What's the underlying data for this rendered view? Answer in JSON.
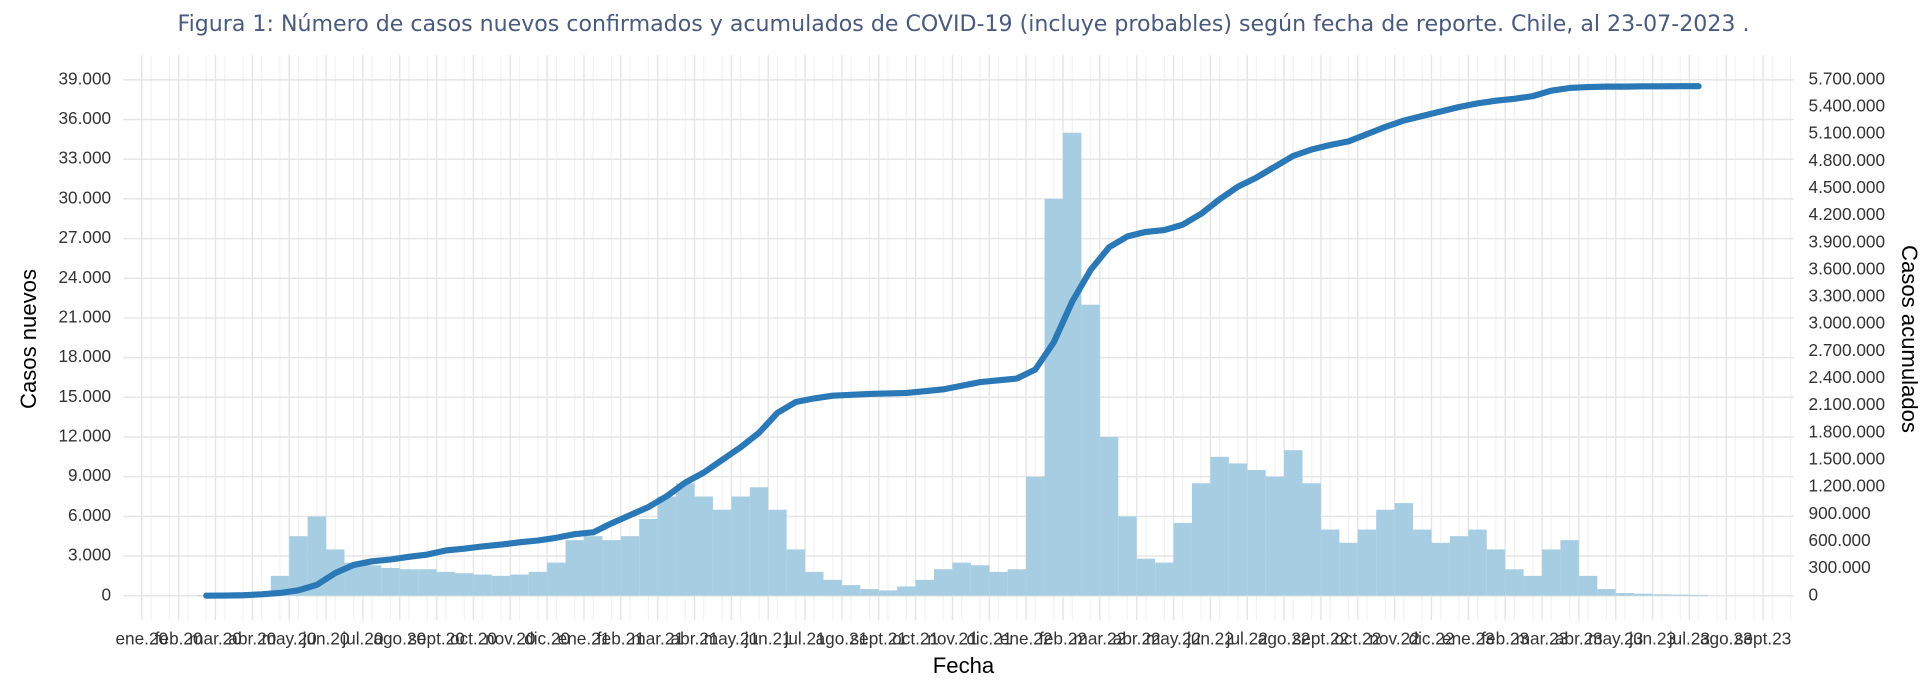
{
  "chart_data": {
    "type": "bar",
    "title": "Figura 1: Número de casos nuevos confirmados y acumulados de COVID-19 (incluye probables) según fecha de reporte. Chile, al 23-07-2023 .",
    "xlabel": "Fecha",
    "ylabel": "Casos nuevos",
    "y2label": "Casos acumulados",
    "categories": [
      "ene.20",
      null,
      "feb.20",
      null,
      "mar.20",
      null,
      "abr.20",
      null,
      "may.20",
      null,
      "jun.20",
      null,
      "jul.20",
      null,
      "ago.20",
      null,
      "sept.20",
      null,
      "oct.20",
      null,
      "nov.20",
      null,
      "dic.20",
      null,
      "ene.21",
      null,
      "feb.21",
      null,
      "mar.21",
      null,
      "abr.21",
      null,
      "may.21",
      null,
      "jun.21",
      null,
      "jul.21",
      null,
      "ago.21",
      null,
      "sept.21",
      null,
      "oct.21",
      null,
      "nov.21",
      null,
      "dic.21",
      null,
      "ene.22",
      null,
      "feb.22",
      null,
      "mar.22",
      null,
      "abr.22",
      null,
      "may.22",
      null,
      "jun.22",
      null,
      "jul.22",
      null,
      "ago.22",
      null,
      "sept.22",
      null,
      "oct.22",
      null,
      "nov.22",
      null,
      "dic.22",
      null,
      "ene.23",
      null,
      "feb.23",
      null,
      "mar.23",
      null,
      "abr.23",
      null,
      "may.23",
      null,
      "jun.23",
      null,
      "jul.23",
      null,
      "ago.23",
      null,
      "sept.23",
      null
    ],
    "series": [
      {
        "type": "bar",
        "axis": "y",
        "color": "#a6cde1",
        "values": [
          null,
          null,
          null,
          50,
          100,
          200,
          300,
          1500,
          4500,
          6000,
          3500,
          2500,
          2300,
          2100,
          2000,
          2000,
          1800,
          1700,
          1600,
          1500,
          1600,
          1800,
          2500,
          4200,
          4500,
          4200,
          4500,
          5800,
          7500,
          8500,
          7500,
          6500,
          7500,
          8200,
          6500,
          3500,
          1800,
          1200,
          800,
          500,
          400,
          700,
          1200,
          2000,
          2500,
          2300,
          1800,
          2000,
          9000,
          30000,
          35000,
          22000,
          12000,
          6000,
          2800,
          2500,
          5500,
          8500,
          10500,
          10000,
          9500,
          9000,
          11000,
          8500,
          5000,
          4000,
          5000,
          6500,
          7000,
          5000,
          4000,
          4500,
          5000,
          3500,
          2000,
          1500,
          3500,
          4200,
          1500,
          500,
          200,
          150,
          100,
          80,
          60,
          null,
          null,
          null,
          null,
          null
        ]
      },
      {
        "type": "line",
        "axis": "y2",
        "color": "#2a78b6",
        "values": [
          null,
          null,
          null,
          0,
          2000,
          5000,
          15000,
          30000,
          60000,
          120000,
          250000,
          340000,
          380000,
          400000,
          430000,
          455000,
          500000,
          520000,
          545000,
          565000,
          590000,
          610000,
          640000,
          680000,
          700000,
          800000,
          890000,
          980000,
          1100000,
          1250000,
          1360000,
          1500000,
          1640000,
          1800000,
          2020000,
          2140000,
          2180000,
          2210000,
          2220000,
          2230000,
          2235000,
          2240000,
          2260000,
          2280000,
          2320000,
          2360000,
          2380000,
          2400000,
          2500000,
          2800000,
          3250000,
          3600000,
          3850000,
          3970000,
          4020000,
          4040000,
          4100000,
          4220000,
          4380000,
          4520000,
          4620000,
          4740000,
          4860000,
          4930000,
          4980000,
          5020000,
          5100000,
          5180000,
          5250000,
          5300000,
          5350000,
          5400000,
          5440000,
          5470000,
          5490000,
          5520000,
          5580000,
          5610000,
          5620000,
          5625000,
          5625000,
          5628000,
          5628000,
          5630000,
          5630000,
          null,
          null,
          null,
          null,
          null
        ]
      }
    ],
    "ylim": [
      0,
      39000
    ],
    "yticks": [
      0,
      {
        "value": 3000,
        "label": "3.000"
      },
      {
        "value": 6000,
        "label": "6.000"
      },
      {
        "value": 9000,
        "label": "9.000"
      },
      {
        "value": 12000,
        "label": "12.000"
      },
      {
        "value": 15000,
        "label": "15.000"
      },
      {
        "value": 18000,
        "label": "18.000"
      },
      {
        "value": 21000,
        "label": "21.000"
      },
      {
        "value": 24000,
        "label": "24.000"
      },
      {
        "value": 27000,
        "label": "27.000"
      },
      {
        "value": 30000,
        "label": "30.000"
      },
      {
        "value": 33000,
        "label": "33.000"
      },
      {
        "value": 36000,
        "label": "36.000"
      },
      {
        "value": 39000,
        "label": "39.000"
      }
    ],
    "y2lim": [
      0,
      5700000
    ],
    "y2ticks": [
      0,
      {
        "value": 300000,
        "label": "300.000"
      },
      {
        "value": 600000,
        "label": "600.000"
      },
      {
        "value": 900000,
        "label": "900.000"
      },
      {
        "value": 1200000,
        "label": "1.200.000"
      },
      {
        "value": 1500000,
        "label": "1.500.000"
      },
      {
        "value": 1800000,
        "label": "1.800.000"
      },
      {
        "value": 2100000,
        "label": "2.100.000"
      },
      {
        "value": 2400000,
        "label": "2.400.000"
      },
      {
        "value": 2700000,
        "label": "2.700.000"
      },
      {
        "value": 3000000,
        "label": "3.000.000"
      },
      {
        "value": 3300000,
        "label": "3.300.000"
      },
      {
        "value": 3600000,
        "label": "3.600.000"
      },
      {
        "value": 3900000,
        "label": "3.900.000"
      },
      {
        "value": 4200000,
        "label": "4.200.000"
      },
      {
        "value": 4500000,
        "label": "4.500.000"
      },
      {
        "value": 4800000,
        "label": "4.800.000"
      },
      {
        "value": 5100000,
        "label": "5.100.000"
      },
      {
        "value": 5400000,
        "label": "5.400.000"
      },
      {
        "value": 5700000,
        "label": "5.700.000"
      }
    ],
    "grid": true
  }
}
